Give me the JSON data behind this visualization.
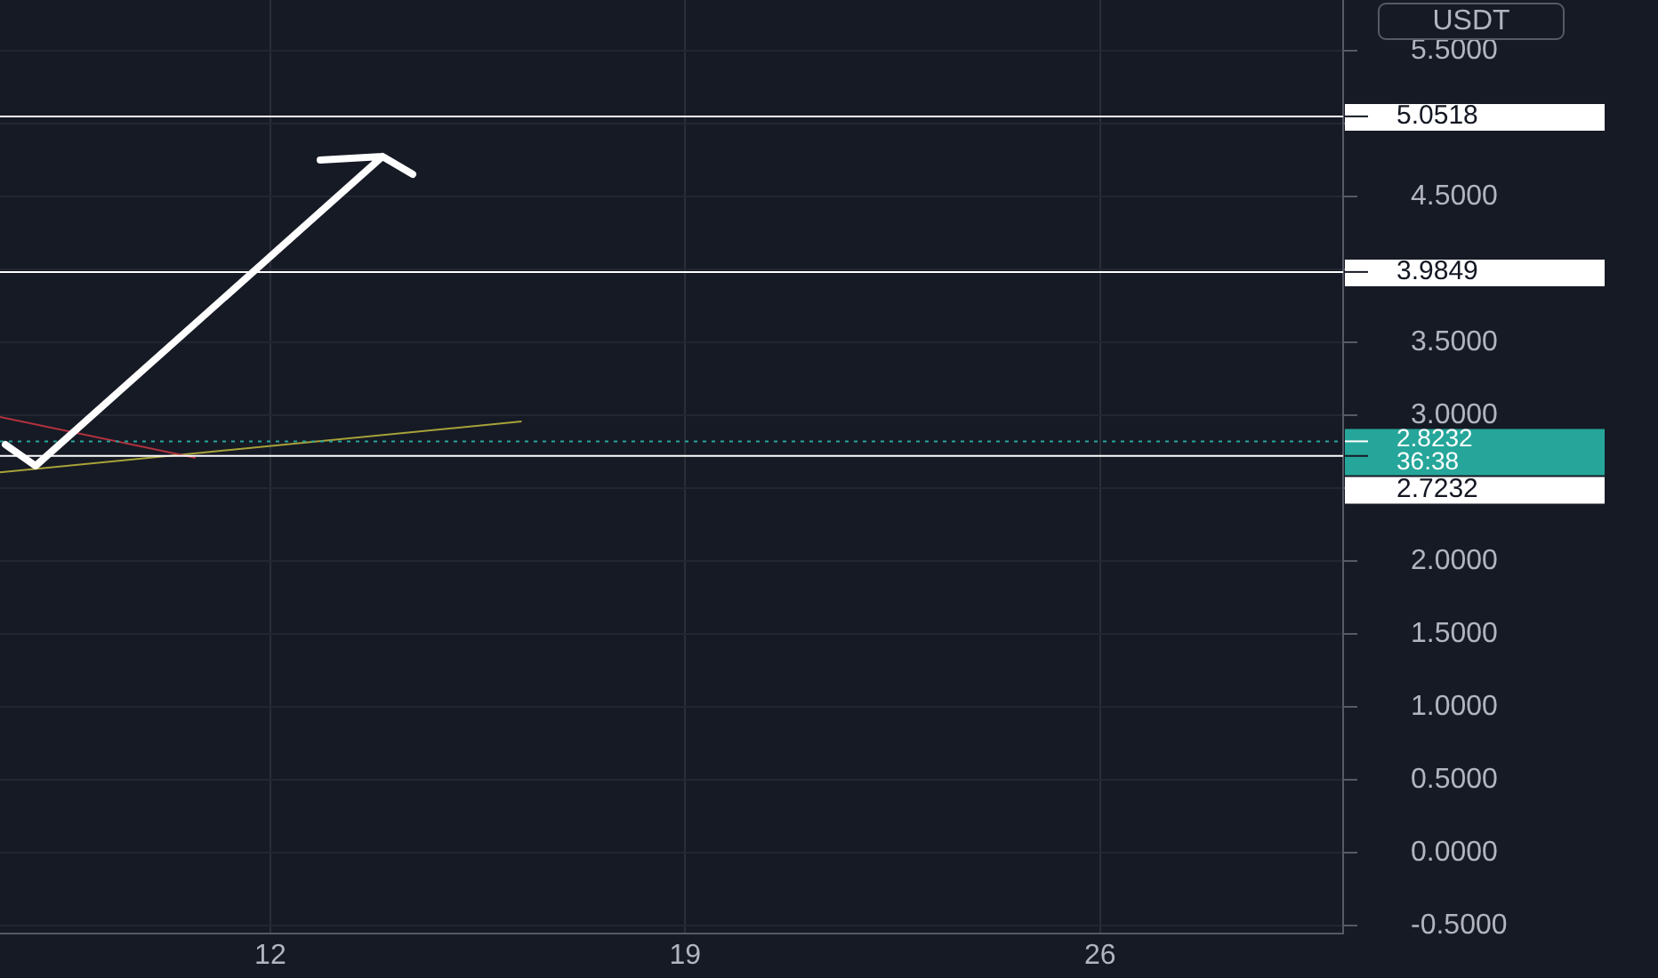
{
  "chart_data": {
    "type": "line",
    "ylabel": "USDT",
    "xlim": [
      7.44,
      30.1
    ],
    "xticks": [
      12,
      19,
      26
    ],
    "ylim": [
      -0.55,
      5.85
    ],
    "yticks": [
      {
        "value": -0.5,
        "label": "-0.5000"
      },
      {
        "value": 0,
        "label": "0.0000"
      },
      {
        "value": 0.5,
        "label": "0.5000"
      },
      {
        "value": 1,
        "label": "1.0000"
      },
      {
        "value": 1.5,
        "label": "1.5000"
      },
      {
        "value": 2,
        "label": "2.0000"
      },
      {
        "value": 2.5,
        "label": null
      },
      {
        "value": 3,
        "label": "3.0000"
      },
      {
        "value": 3.5,
        "label": "3.5000"
      },
      {
        "value": 4,
        "label": null
      },
      {
        "value": 4.5,
        "label": "4.5000"
      },
      {
        "value": 5,
        "label": null
      },
      {
        "value": 5.5,
        "label": "5.5000"
      }
    ],
    "series": [
      {
        "color": "#b2323f",
        "x": [
          7.44,
          10.74
        ],
        "values": [
          2.99,
          2.71
        ]
      },
      {
        "color": "#a8a23a",
        "x": [
          7.44,
          16.24
        ],
        "values": [
          2.61,
          2.96
        ]
      }
    ],
    "ref_lines": [
      {
        "axis": "y",
        "value": 5.0518,
        "label": "5.0518",
        "color": "#ffffff",
        "line_style": "solid"
      },
      {
        "axis": "y",
        "value": 3.9849,
        "label": "3.9849",
        "color": "#ffffff",
        "line_style": "solid"
      },
      {
        "axis": "y",
        "value": 2.8232,
        "label": "2.8232",
        "color": "#26a69a",
        "line_style": "dotted"
      },
      {
        "axis": "y",
        "value": 2.7232,
        "label": "2.7232",
        "color": "#ffffff",
        "line_style": "solid"
      }
    ],
    "annotations": [
      "36:38"
    ],
    "grid": true,
    "legend": false,
    "marker": "none",
    "line_style": "solid"
  }
}
